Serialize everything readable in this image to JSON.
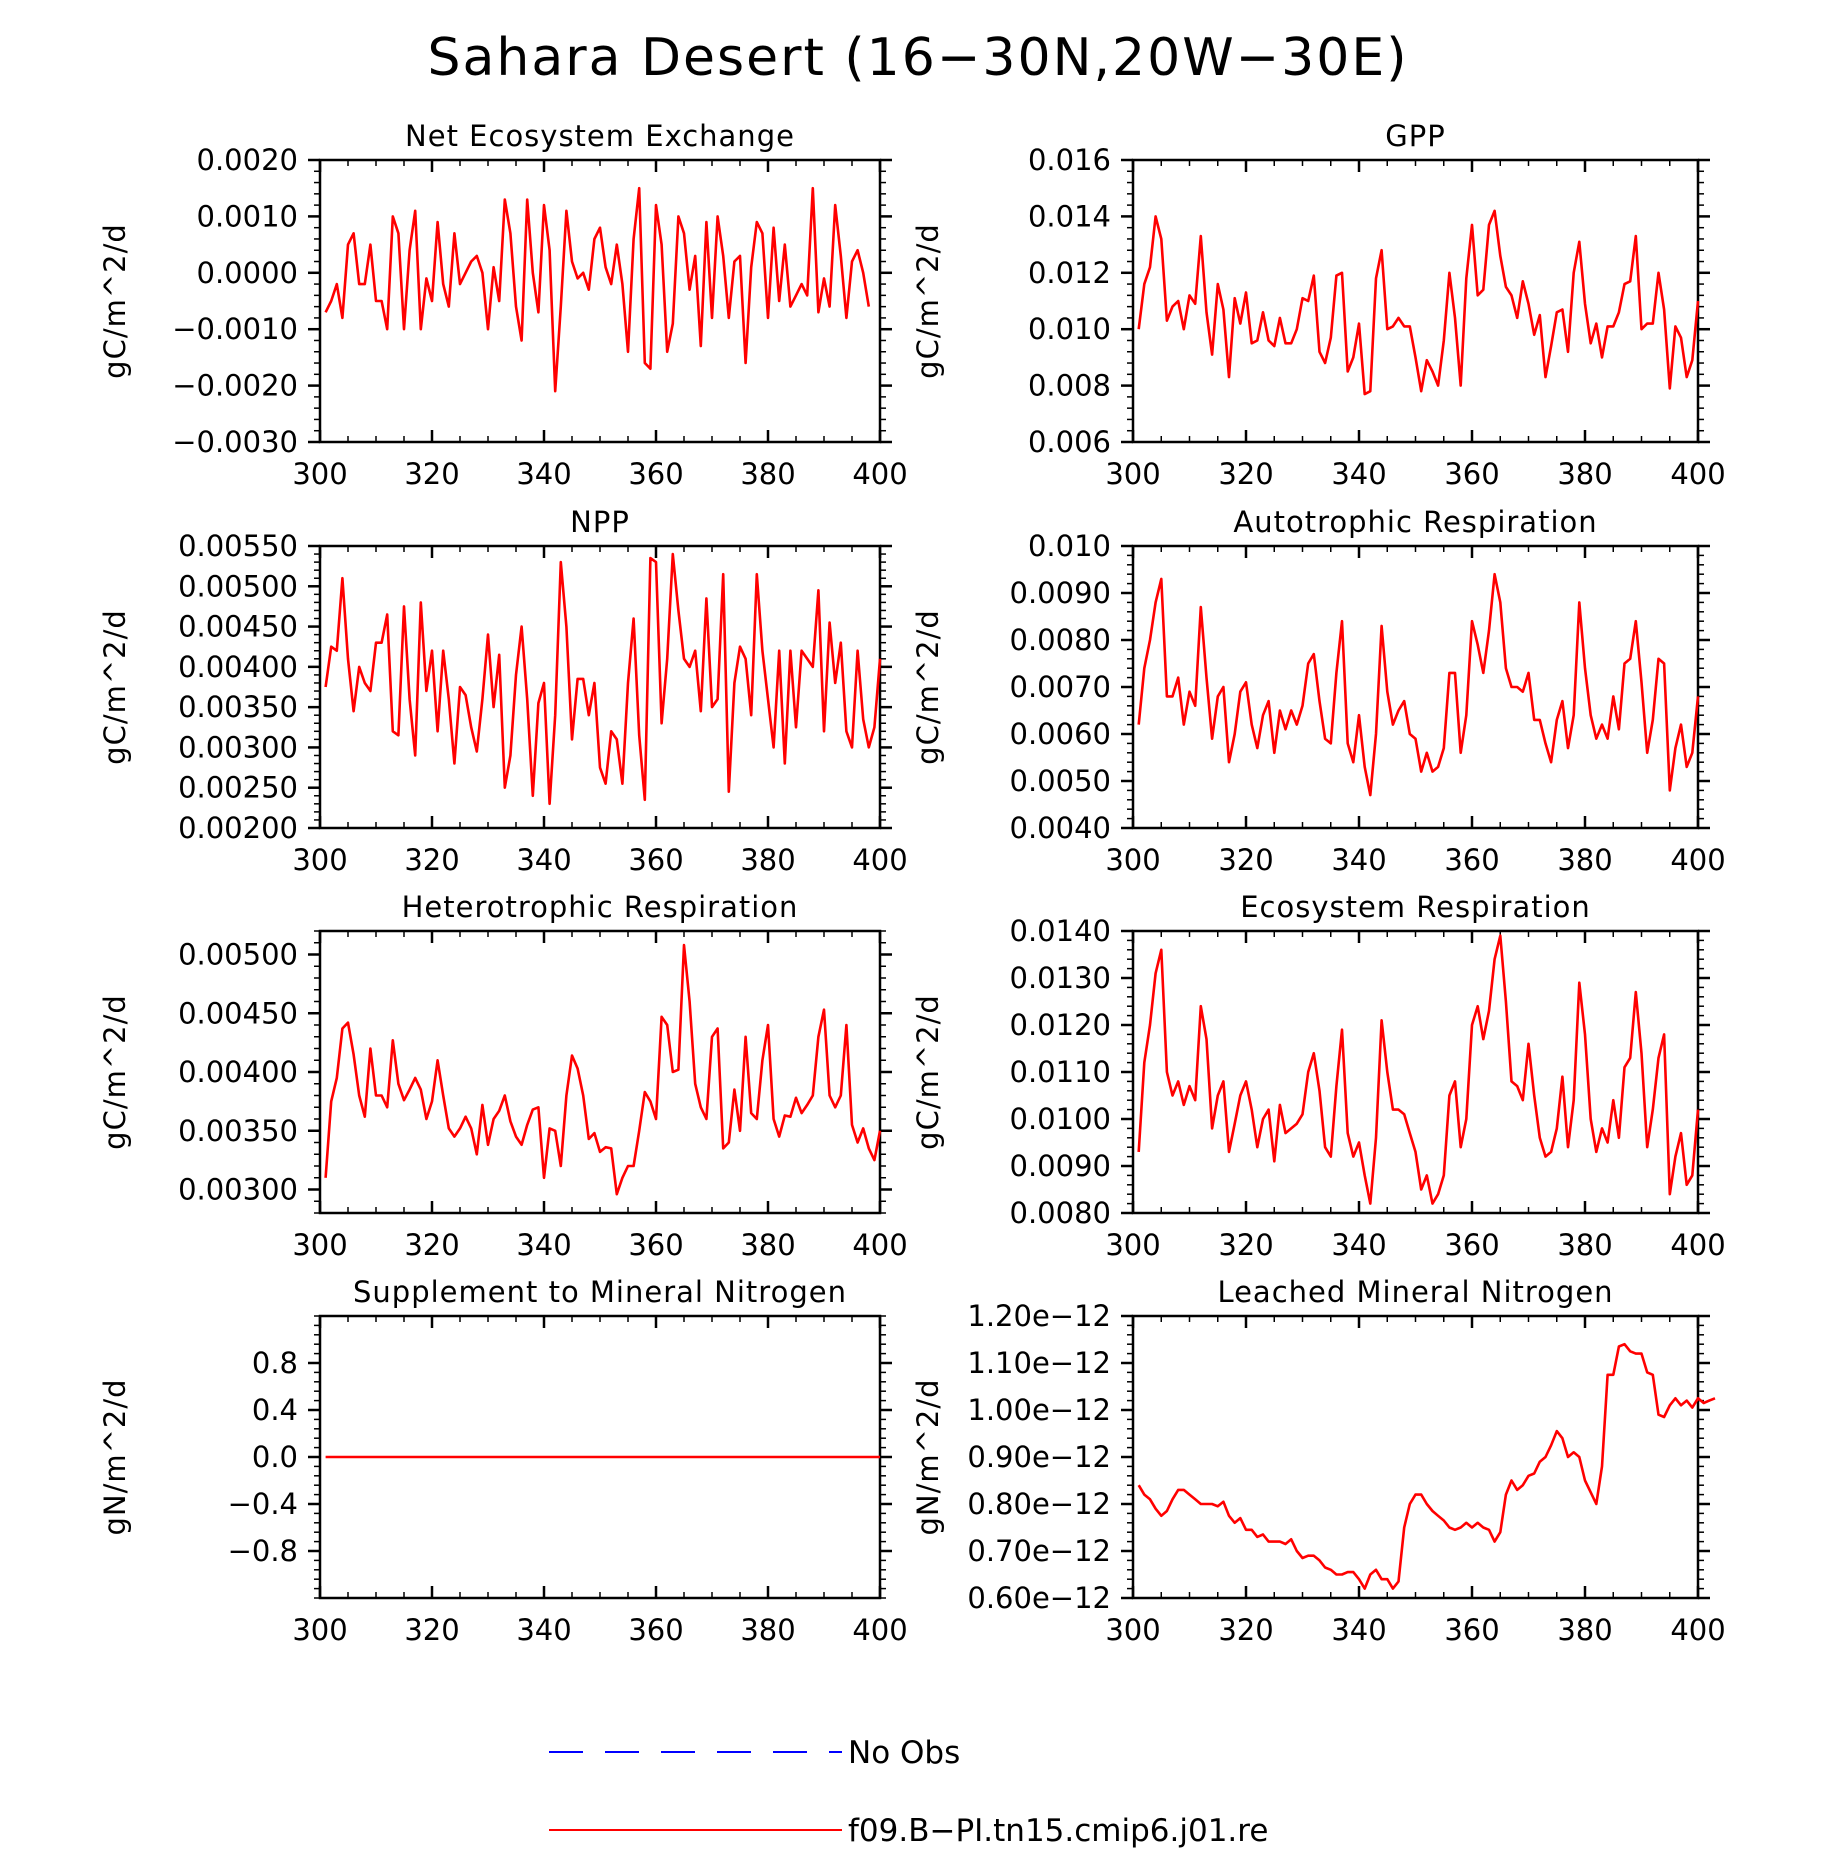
{
  "title": "Sahara Desert (16−30N,20W−30E)",
  "colors": {
    "model": "#ff0000",
    "obs": "#0000ff",
    "axis": "#000000"
  },
  "legend": {
    "placement": "bottom-center",
    "entries": [
      {
        "label": "No Obs",
        "style": "dashed",
        "color": "#0000ff"
      },
      {
        "label": "f09.B−PI.tn15.cmip6.j01.re",
        "style": "solid",
        "color": "#ff0000"
      }
    ]
  },
  "chart_data": [
    {
      "type": "line",
      "title": "Net Ecosystem Exchange",
      "ylabel": "gC/m^2/d",
      "xlim": [
        300,
        400
      ],
      "ylim": [
        -0.003,
        0.002
      ],
      "xticks": [
        300,
        320,
        340,
        360,
        380,
        400
      ],
      "xtick_labels": [
        "300",
        "320",
        "340",
        "360",
        "380",
        "400"
      ],
      "yticks": [
        -0.003,
        -0.002,
        -0.001,
        0,
        0.001,
        0.002
      ],
      "ytick_labels": [
        "−0.0030",
        "−0.0020",
        "−0.0010",
        "0.0000",
        "0.0010",
        "0.0020"
      ],
      "x0": 301,
      "dx": 1,
      "values": [
        -0.0007,
        -0.0005,
        -0.0002,
        -0.0008,
        0.0005,
        0.0007,
        -0.0002,
        -0.0002,
        0.0005,
        -0.0005,
        -0.0005,
        -0.001,
        0.001,
        0.0007,
        -0.001,
        0.0004,
        0.0011,
        -0.001,
        -0.0001,
        -0.0005,
        0.0009,
        -0.0002,
        -0.0006,
        0.0007,
        -0.0002,
        0.0,
        0.0002,
        0.0003,
        0.0,
        -0.001,
        0.0001,
        -0.0005,
        0.0013,
        0.0007,
        -0.0006,
        -0.0012,
        0.0013,
        0.0,
        -0.0007,
        0.0012,
        0.0004,
        -0.0021,
        -0.0006,
        0.0011,
        0.0002,
        -0.0001,
        0.0,
        -0.0003,
        0.0006,
        0.0008,
        0.0001,
        -0.0002,
        0.0005,
        -0.0002,
        -0.0014,
        0.0006,
        0.0015,
        -0.0016,
        -0.0017,
        0.0012,
        0.0005,
        -0.0014,
        -0.0009,
        0.001,
        0.0007,
        -0.0003,
        0.0003,
        -0.0013,
        0.0009,
        -0.0008,
        0.001,
        0.0003,
        -0.0008,
        0.0002,
        0.0003,
        -0.0016,
        0.0001,
        0.0009,
        0.0007,
        -0.0008,
        0.0008,
        -0.0005,
        0.0005,
        -0.0006,
        -0.0004,
        -0.0002,
        -0.0004,
        0.0015,
        -0.0007,
        -0.0001,
        -0.0006,
        0.0012,
        0.0003,
        -0.0008,
        0.0002,
        0.0004,
        0.0,
        -0.0006
      ]
    },
    {
      "type": "line",
      "title": "GPP",
      "ylabel": "gC/m^2/d",
      "xlim": [
        300,
        400
      ],
      "ylim": [
        0.006,
        0.016
      ],
      "xticks": [
        300,
        320,
        340,
        360,
        380,
        400
      ],
      "xtick_labels": [
        "300",
        "320",
        "340",
        "360",
        "380",
        "400"
      ],
      "yticks": [
        0.006,
        0.008,
        0.01,
        0.012,
        0.014,
        0.016
      ],
      "ytick_labels": [
        "0.006",
        "0.008",
        "0.010",
        "0.012",
        "0.014",
        "0.016"
      ],
      "x0": 301,
      "dx": 1,
      "values": [
        0.01,
        0.0116,
        0.0122,
        0.014,
        0.0132,
        0.0103,
        0.0108,
        0.011,
        0.01,
        0.0112,
        0.0109,
        0.0133,
        0.0106,
        0.0091,
        0.0116,
        0.0107,
        0.0083,
        0.0111,
        0.0102,
        0.0113,
        0.0095,
        0.0096,
        0.0106,
        0.0096,
        0.0094,
        0.0104,
        0.0095,
        0.0095,
        0.01,
        0.0111,
        0.011,
        0.0119,
        0.0092,
        0.0088,
        0.0097,
        0.0119,
        0.012,
        0.0085,
        0.009,
        0.0102,
        0.0077,
        0.0078,
        0.0118,
        0.0128,
        0.01,
        0.0101,
        0.0104,
        0.0101,
        0.0101,
        0.009,
        0.0078,
        0.0089,
        0.0085,
        0.008,
        0.0096,
        0.012,
        0.0104,
        0.008,
        0.0118,
        0.0137,
        0.0112,
        0.0114,
        0.0137,
        0.0142,
        0.0126,
        0.0115,
        0.0112,
        0.0104,
        0.0117,
        0.0109,
        0.0098,
        0.0105,
        0.0083,
        0.0094,
        0.0106,
        0.0107,
        0.0092,
        0.012,
        0.0131,
        0.0109,
        0.0095,
        0.0102,
        0.009,
        0.0101,
        0.0101,
        0.0106,
        0.0116,
        0.0117,
        0.0133,
        0.01,
        0.0102,
        0.0102,
        0.012,
        0.0107,
        0.0079,
        0.0101,
        0.0097,
        0.0083,
        0.0089,
        0.011
      ]
    },
    {
      "type": "line",
      "title": "NPP",
      "ylabel": "gC/m^2/d",
      "xlim": [
        300,
        400
      ],
      "ylim": [
        0.002,
        0.0055
      ],
      "xticks": [
        300,
        320,
        340,
        360,
        380,
        400
      ],
      "xtick_labels": [
        "300",
        "320",
        "340",
        "360",
        "380",
        "400"
      ],
      "yticks": [
        0.002,
        0.0025,
        0.003,
        0.0035,
        0.004,
        0.0045,
        0.005,
        0.0055
      ],
      "ytick_labels": [
        "0.00200",
        "0.00250",
        "0.00300",
        "0.00350",
        "0.00400",
        "0.00450",
        "0.00500",
        "0.00550"
      ],
      "x0": 301,
      "dx": 1,
      "values": [
        0.00375,
        0.00425,
        0.0042,
        0.0051,
        0.0041,
        0.00345,
        0.004,
        0.0038,
        0.0037,
        0.0043,
        0.0043,
        0.00465,
        0.0032,
        0.00315,
        0.00475,
        0.0036,
        0.0029,
        0.0048,
        0.0037,
        0.0042,
        0.0032,
        0.0042,
        0.0036,
        0.0028,
        0.00375,
        0.00365,
        0.00325,
        0.00295,
        0.0036,
        0.0044,
        0.0035,
        0.00415,
        0.0025,
        0.0029,
        0.0039,
        0.0045,
        0.0036,
        0.0024,
        0.00355,
        0.0038,
        0.0023,
        0.0034,
        0.0053,
        0.0045,
        0.0031,
        0.00385,
        0.00385,
        0.0034,
        0.0038,
        0.00275,
        0.00255,
        0.0032,
        0.0031,
        0.00255,
        0.0038,
        0.0046,
        0.00315,
        0.00235,
        0.00535,
        0.0053,
        0.0033,
        0.0041,
        0.0054,
        0.0047,
        0.0041,
        0.004,
        0.0042,
        0.00345,
        0.00485,
        0.0035,
        0.0036,
        0.00515,
        0.00245,
        0.0038,
        0.00425,
        0.0041,
        0.0034,
        0.00515,
        0.0042,
        0.0036,
        0.003,
        0.0042,
        0.0028,
        0.0042,
        0.00325,
        0.0042,
        0.0041,
        0.004,
        0.00495,
        0.0032,
        0.00455,
        0.0038,
        0.0043,
        0.0032,
        0.003,
        0.0042,
        0.00335,
        0.003,
        0.00325,
        0.0041
      ]
    },
    {
      "type": "line",
      "title": "Autotrophic Respiration",
      "ylabel": "gC/m^2/d",
      "xlim": [
        300,
        400
      ],
      "ylim": [
        0.004,
        0.01
      ],
      "xticks": [
        300,
        320,
        340,
        360,
        380,
        400
      ],
      "xtick_labels": [
        "300",
        "320",
        "340",
        "360",
        "380",
        "400"
      ],
      "yticks": [
        0.004,
        0.005,
        0.006,
        0.007,
        0.008,
        0.009,
        0.01
      ],
      "ytick_labels": [
        "0.0040",
        "0.0050",
        "0.0060",
        "0.0070",
        "0.0080",
        "0.0090",
        "0.010"
      ],
      "x0": 301,
      "dx": 1,
      "values": [
        0.0062,
        0.0074,
        0.008,
        0.0088,
        0.0093,
        0.0068,
        0.0068,
        0.0072,
        0.0062,
        0.0069,
        0.0066,
        0.0087,
        0.0072,
        0.0059,
        0.0068,
        0.007,
        0.0054,
        0.006,
        0.0069,
        0.0071,
        0.0062,
        0.0057,
        0.0064,
        0.0067,
        0.0056,
        0.0065,
        0.0061,
        0.0065,
        0.0062,
        0.0066,
        0.0075,
        0.0077,
        0.0067,
        0.0059,
        0.0058,
        0.0073,
        0.0084,
        0.0058,
        0.0054,
        0.0064,
        0.0053,
        0.0047,
        0.006,
        0.0083,
        0.0069,
        0.0062,
        0.0065,
        0.0067,
        0.006,
        0.0059,
        0.0052,
        0.0056,
        0.0052,
        0.0053,
        0.0057,
        0.0073,
        0.0073,
        0.0056,
        0.0064,
        0.0084,
        0.0079,
        0.0073,
        0.0082,
        0.0094,
        0.0088,
        0.0074,
        0.007,
        0.007,
        0.0069,
        0.0073,
        0.0063,
        0.0063,
        0.0058,
        0.0054,
        0.0063,
        0.0067,
        0.0057,
        0.0064,
        0.0088,
        0.0074,
        0.0064,
        0.0059,
        0.0062,
        0.0059,
        0.0068,
        0.0061,
        0.0075,
        0.0076,
        0.0084,
        0.0071,
        0.0056,
        0.0063,
        0.0076,
        0.0075,
        0.0048,
        0.0057,
        0.0062,
        0.0053,
        0.0056,
        0.0068
      ]
    },
    {
      "type": "line",
      "title": "Heterotrophic Respiration",
      "ylabel": "gC/m^2/d",
      "xlim": [
        300,
        400
      ],
      "ylim": [
        0.0028,
        0.0052
      ],
      "xticks": [
        300,
        320,
        340,
        360,
        380,
        400
      ],
      "xtick_labels": [
        "300",
        "320",
        "340",
        "360",
        "380",
        "400"
      ],
      "yticks": [
        0.003,
        0.0035,
        0.004,
        0.0045,
        0.005
      ],
      "ytick_labels": [
        "0.00300",
        "0.00350",
        "0.00400",
        "0.00450",
        "0.00500"
      ],
      "x0": 301,
      "dx": 1,
      "values": [
        0.0031,
        0.00375,
        0.00395,
        0.00437,
        0.00442,
        0.00415,
        0.0038,
        0.00362,
        0.0042,
        0.0038,
        0.0038,
        0.0037,
        0.00427,
        0.0039,
        0.00376,
        0.00385,
        0.00395,
        0.00385,
        0.0036,
        0.00375,
        0.0041,
        0.0038,
        0.00352,
        0.00345,
        0.00352,
        0.00362,
        0.00352,
        0.0033,
        0.00372,
        0.00338,
        0.0036,
        0.00367,
        0.0038,
        0.00358,
        0.00345,
        0.00338,
        0.00355,
        0.00368,
        0.0037,
        0.0031,
        0.00352,
        0.0035,
        0.0032,
        0.0038,
        0.00414,
        0.00403,
        0.0038,
        0.00343,
        0.00348,
        0.00332,
        0.00336,
        0.00335,
        0.00296,
        0.0031,
        0.0032,
        0.0032,
        0.0035,
        0.00383,
        0.00375,
        0.0036,
        0.00447,
        0.0044,
        0.004,
        0.00402,
        0.00508,
        0.0046,
        0.0039,
        0.0037,
        0.0036,
        0.0043,
        0.00437,
        0.00335,
        0.0034,
        0.00385,
        0.0035,
        0.0043,
        0.00365,
        0.0036,
        0.0041,
        0.0044,
        0.0036,
        0.00345,
        0.00363,
        0.00362,
        0.00378,
        0.00365,
        0.00372,
        0.0038,
        0.0043,
        0.00453,
        0.0038,
        0.0037,
        0.0038,
        0.0044,
        0.00355,
        0.0034,
        0.00352,
        0.00335,
        0.00325,
        0.0035
      ]
    },
    {
      "type": "line",
      "title": "Ecosystem Respiration",
      "ylabel": "gC/m^2/d",
      "xlim": [
        300,
        400
      ],
      "ylim": [
        0.008,
        0.014
      ],
      "xticks": [
        300,
        320,
        340,
        360,
        380,
        400
      ],
      "xtick_labels": [
        "300",
        "320",
        "340",
        "360",
        "380",
        "400"
      ],
      "yticks": [
        0.008,
        0.009,
        0.01,
        0.011,
        0.012,
        0.013,
        0.014
      ],
      "ytick_labels": [
        "0.0080",
        "0.0090",
        "0.0100",
        "0.0110",
        "0.0120",
        "0.0130",
        "0.0140"
      ],
      "x0": 301,
      "dx": 1,
      "values": [
        0.0093,
        0.0112,
        0.012,
        0.0131,
        0.0136,
        0.011,
        0.0105,
        0.0108,
        0.0103,
        0.0107,
        0.0104,
        0.0124,
        0.0117,
        0.0098,
        0.0105,
        0.0108,
        0.0093,
        0.0099,
        0.0105,
        0.0108,
        0.0102,
        0.0094,
        0.01,
        0.0102,
        0.0091,
        0.0103,
        0.0097,
        0.0098,
        0.0099,
        0.0101,
        0.011,
        0.0114,
        0.0106,
        0.0094,
        0.0092,
        0.0107,
        0.0119,
        0.0097,
        0.0092,
        0.0095,
        0.0088,
        0.0082,
        0.0096,
        0.0121,
        0.011,
        0.0102,
        0.0102,
        0.0101,
        0.0097,
        0.0093,
        0.0085,
        0.0088,
        0.0082,
        0.0084,
        0.0088,
        0.0105,
        0.0108,
        0.0094,
        0.01,
        0.012,
        0.0124,
        0.0117,
        0.0123,
        0.0134,
        0.0139,
        0.0125,
        0.0108,
        0.0107,
        0.0104,
        0.0116,
        0.0105,
        0.0096,
        0.0092,
        0.0093,
        0.0098,
        0.0109,
        0.0094,
        0.0104,
        0.0129,
        0.0118,
        0.01,
        0.0093,
        0.0098,
        0.0095,
        0.0104,
        0.0096,
        0.0111,
        0.0113,
        0.0127,
        0.0114,
        0.0094,
        0.0102,
        0.0113,
        0.0118,
        0.0084,
        0.0092,
        0.0097,
        0.0086,
        0.0088,
        0.0102
      ]
    },
    {
      "type": "line",
      "title": "Supplement to Mineral Nitrogen",
      "ylabel": "gN/m^2/d",
      "xlim": [
        300,
        400
      ],
      "ylim": [
        -1.2,
        1.2
      ],
      "xticks": [
        300,
        320,
        340,
        360,
        380,
        400
      ],
      "xtick_labels": [
        "300",
        "320",
        "340",
        "360",
        "380",
        "400"
      ],
      "yticks": [
        -0.8,
        -0.4,
        0,
        0.4,
        0.8
      ],
      "ytick_labels": [
        "−0.8",
        "−0.4",
        "0.0",
        "0.4",
        "0.8"
      ],
      "x0": 301,
      "dx": 1,
      "values": [
        0.0,
        0.0,
        0.0,
        0.0,
        0.0,
        0.0,
        0.0,
        0.0,
        0.0,
        0.0,
        0.0,
        0.0,
        0.0,
        0.0,
        0.0,
        0.0,
        0.0,
        0.0,
        0.0,
        0.0,
        0.0,
        0.0,
        0.0,
        0.0,
        0.0,
        0.0,
        0.0,
        0.0,
        0.0,
        0.0,
        0.0,
        0.0,
        0.0,
        0.0,
        0.0,
        0.0,
        0.0,
        0.0,
        0.0,
        0.0,
        0.0,
        0.0,
        0.0,
        0.0,
        0.0,
        0.0,
        0.0,
        0.0,
        0.0,
        0.0,
        0.0,
        0.0,
        0.0,
        0.0,
        0.0,
        0.0,
        0.0,
        0.0,
        0.0,
        0.0,
        0.0,
        0.0,
        0.0,
        0.0,
        0.0,
        0.0,
        0.0,
        0.0,
        0.0,
        0.0,
        0.0,
        0.0,
        0.0,
        0.0,
        0.0,
        0.0,
        0.0,
        0.0,
        0.0,
        0.0,
        0.0,
        0.0,
        0.0,
        0.0,
        0.0,
        0.0,
        0.0,
        0.0,
        0.0,
        0.0,
        0.0,
        0.0,
        0.0,
        0.0,
        0.0,
        0.0,
        0.0,
        0.0,
        0.0,
        0.0
      ]
    },
    {
      "type": "line",
      "title": "Leached Mineral Nitrogen",
      "ylabel": "gN/m^2/d",
      "xlim": [
        300,
        400
      ],
      "ylim": [
        6e-13,
        1.2e-12
      ],
      "xticks": [
        300,
        320,
        340,
        360,
        380,
        400
      ],
      "xtick_labels": [
        "300",
        "320",
        "340",
        "360",
        "380",
        "400"
      ],
      "yticks": [
        6e-13,
        7e-13,
        8e-13,
        9e-13,
        1e-12,
        1.1e-12,
        1.2e-12
      ],
      "ytick_labels": [
        "0.60e−12",
        "0.70e−12",
        "0.80e−12",
        "0.90e−12",
        "1.00e−12",
        "1.10e−12",
        "1.20e−12"
      ],
      "x0": 301,
      "dx": 1,
      "values": [
        8.4e-13,
        8.2e-13,
        8.1e-13,
        7.9e-13,
        7.75e-13,
        7.85e-13,
        8.1e-13,
        8.3e-13,
        8.3e-13,
        8.2e-13,
        8.1e-13,
        8e-13,
        8e-13,
        8e-13,
        7.95e-13,
        8.05e-13,
        7.75e-13,
        7.6e-13,
        7.7e-13,
        7.45e-13,
        7.45e-13,
        7.3e-13,
        7.35e-13,
        7.2e-13,
        7.2e-13,
        7.2e-13,
        7.15e-13,
        7.25e-13,
        7e-13,
        6.85e-13,
        6.9e-13,
        6.9e-13,
        6.8e-13,
        6.65e-13,
        6.6e-13,
        6.5e-13,
        6.5e-13,
        6.55e-13,
        6.55e-13,
        6.4e-13,
        6.2e-13,
        6.5e-13,
        6.6e-13,
        6.4e-13,
        6.4e-13,
        6.2e-13,
        6.35e-13,
        7.5e-13,
        8e-13,
        8.2e-13,
        8.2e-13,
        8e-13,
        7.85e-13,
        7.75e-13,
        7.65e-13,
        7.5e-13,
        7.45e-13,
        7.5e-13,
        7.6e-13,
        7.5e-13,
        7.6e-13,
        7.5e-13,
        7.45e-13,
        7.2e-13,
        7.4e-13,
        8.2e-13,
        8.5e-13,
        8.3e-13,
        8.4e-13,
        8.6e-13,
        8.65e-13,
        8.9e-13,
        9e-13,
        9.25e-13,
        9.55e-13,
        9.4e-13,
        9e-13,
        9.1e-13,
        9e-13,
        8.5e-13,
        8.25e-13,
        8e-13,
        8.8e-13,
        1.075e-12,
        1.075e-12,
        1.135e-12,
        1.14e-12,
        1.125e-12,
        1.12e-12,
        1.12e-12,
        1.08e-12,
        1.075e-12,
        9.9e-13,
        9.85e-13,
        1.01e-12,
        1.025e-12,
        1.01e-12,
        1.02e-12,
        1.005e-12,
        1.025e-12,
        1.015e-12,
        1.02e-12,
        1.025e-12
      ]
    }
  ]
}
